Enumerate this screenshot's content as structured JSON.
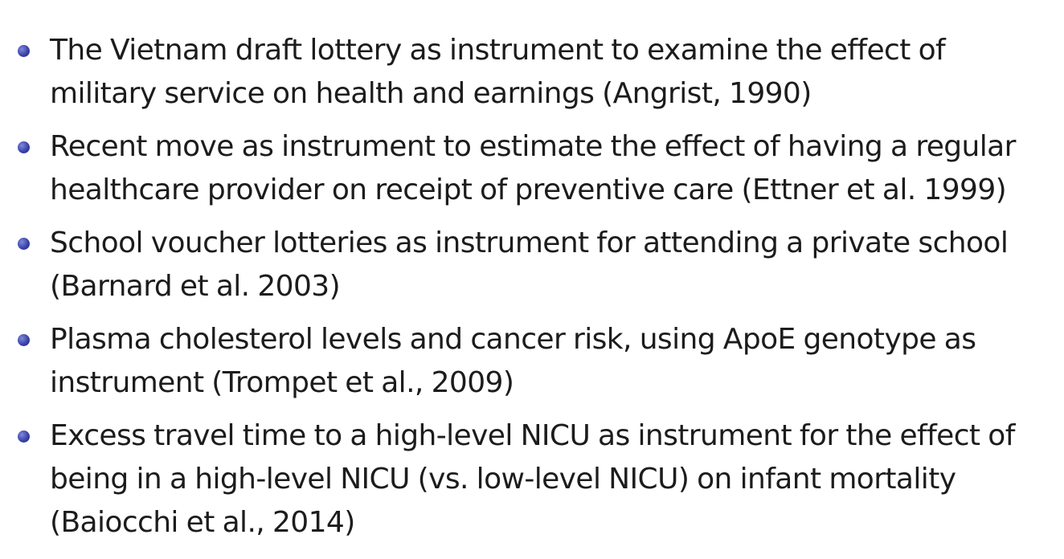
{
  "slide": {
    "bullets": [
      {
        "text": "The Vietnam draft lottery as instrument to examine the effect of military service on health and earnings (Angrist, 1990)"
      },
      {
        "text": "Recent move as instrument to estimate the effect of having a regular healthcare provider on receipt of preventive care (Ettner et al. 1999)"
      },
      {
        "text": "School voucher lotteries as instrument for attending a private school (Barnard et al. 2003)"
      },
      {
        "text": "Plasma cholesterol levels and cancer risk, using ApoE genotype as instrument (Trompet et al., 2009)"
      },
      {
        "text": "Excess travel time to a high-level NICU as instrument for the effect of being in a high-level NICU (vs. low-level NICU) on infant mortality (Baiocchi et al., 2014)"
      }
    ]
  }
}
